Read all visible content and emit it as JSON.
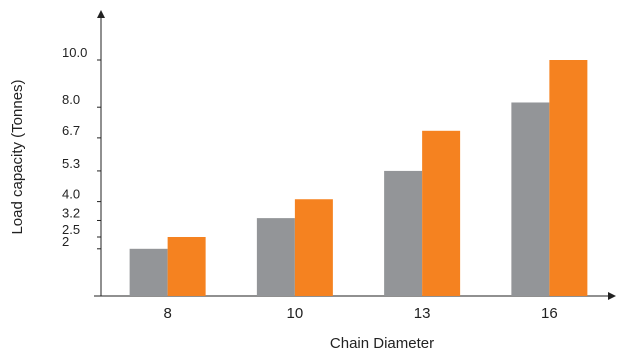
{
  "chart_data": {
    "type": "bar",
    "title": "",
    "xlabel": "Chain Diameter",
    "ylabel": "Load capacity (Tonnes)",
    "categories": [
      "8",
      "10",
      "13",
      "16"
    ],
    "series": [
      {
        "values": [
          2.0,
          3.3,
          5.3,
          8.2
        ]
      },
      {
        "values": [
          2.5,
          4.1,
          7.0,
          10.0
        ]
      }
    ],
    "y_ticks": [
      "2",
      "2.5",
      "3.2",
      "4.0",
      "5.3",
      "6.7",
      "8.0",
      "10.0"
    ],
    "colors": [
      "#939598",
      "#f58220"
    ],
    "ylim": [
      0,
      12
    ],
    "grid": false,
    "legend": "none"
  }
}
